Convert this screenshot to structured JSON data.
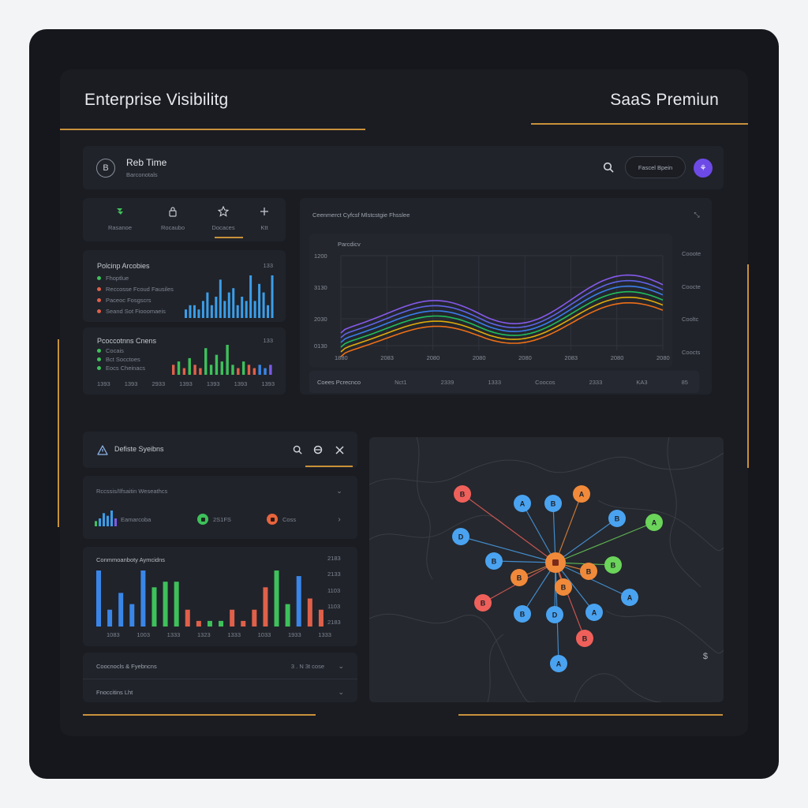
{
  "header": {
    "title": "Enterprise Visibilitg",
    "plan": "SaaS Premiun"
  },
  "topbar": {
    "logo_glyph": "B",
    "app_name": "Reb Time",
    "app_subtitle": "Barconotals",
    "search_icon": "search-icon",
    "pill_label": "Fascel Bpein",
    "avatar_glyph": "⚘"
  },
  "nav": {
    "tabs": [
      {
        "icon": "layers-icon",
        "label": "Rasanoe",
        "active": false
      },
      {
        "icon": "lock-icon",
        "label": "Rocaubo",
        "active": false
      },
      {
        "icon": "star-icon",
        "label": "Docaces",
        "active": true
      },
      {
        "icon": "plus-icon",
        "label": "Ktt",
        "active": false
      }
    ]
  },
  "activity_card": {
    "title": "Polcinp Arcobies",
    "corner": "133",
    "legend": [
      {
        "label": "Fhoptlue",
        "color": "#3ec15b"
      },
      {
        "label": "Reccosse Fcoud Fausiles",
        "color": "#e0604a"
      },
      {
        "label": "Paceoc Fosgscrs",
        "color": "#e0604a"
      },
      {
        "label": "Seand Sot Fiooomaeis",
        "color": "#e0604a"
      }
    ],
    "bars": [
      2,
      3,
      3,
      2,
      4,
      6,
      3,
      5,
      9,
      4,
      6,
      7,
      3,
      5,
      4,
      10,
      4,
      8,
      6,
      3,
      10
    ]
  },
  "sessions_card": {
    "title": "Pcoccotnns Cnens",
    "corner": "133",
    "legend": [
      {
        "label": "Cocais",
        "color": "#3ec15b"
      },
      {
        "label": "Bct Socctoes",
        "color": "#3ec15b"
      },
      {
        "label": "Eocs Cheinacs",
        "color": "#3ec15b"
      }
    ],
    "x_labels": [
      "1393",
      "1393",
      "2933",
      "1393",
      "1393",
      "1393",
      "1393"
    ],
    "bars": [
      {
        "v": 3,
        "c": "#e0604a"
      },
      {
        "v": 4,
        "c": "#3ec15b"
      },
      {
        "v": 2,
        "c": "#e0604a"
      },
      {
        "v": 5,
        "c": "#3ec15b"
      },
      {
        "v": 3,
        "c": "#e0604a"
      },
      {
        "v": 2,
        "c": "#e0604a"
      },
      {
        "v": 8,
        "c": "#3ec15b"
      },
      {
        "v": 3,
        "c": "#3ec15b"
      },
      {
        "v": 6,
        "c": "#3ec15b"
      },
      {
        "v": 4,
        "c": "#3ec15b"
      },
      {
        "v": 9,
        "c": "#3ec15b"
      },
      {
        "v": 3,
        "c": "#3ec15b"
      },
      {
        "v": 2,
        "c": "#e0604a"
      },
      {
        "v": 4,
        "c": "#3ec15b"
      },
      {
        "v": 3,
        "c": "#e0604a"
      },
      {
        "v": 2,
        "c": "#e0604a"
      },
      {
        "v": 3,
        "c": "#3a86e8"
      },
      {
        "v": 2,
        "c": "#3a86e8"
      },
      {
        "v": 3,
        "c": "#7b5be6"
      }
    ]
  },
  "wave_chart": {
    "title": "Ceenmerct Cyfcsf Mlstcstgie Fhsslee",
    "subtitle": "Parcdicv",
    "y_labels": [
      "1200",
      "3130",
      "2030",
      "0130"
    ],
    "x_labels": [
      "1880",
      "2083",
      "2080",
      "2080",
      "2080",
      "2083",
      "2080",
      "2080"
    ],
    "right_labels": [
      "Cooote",
      "Coocte",
      "Cooltc",
      "Coocts"
    ],
    "footer": [
      "Coees Pcrecnco",
      "Nct1",
      "2339",
      "1333",
      "Coocos",
      "2333",
      "KA3",
      "85"
    ],
    "series_colors": [
      "#8b5cf6",
      "#6366f1",
      "#3b82f6",
      "#22c55e",
      "#eab308",
      "#f97316"
    ]
  },
  "systems_bar": {
    "icon": "warning-icon",
    "title": "Defiste Syeibns"
  },
  "status_card": {
    "title": "Rccssis/Ilfsaitin Weseathcs",
    "spark_label": "Eamarcoba",
    "ok_label": "2S1FS",
    "err_label": "Coss",
    "bars": [
      2,
      3,
      5,
      4,
      6,
      3
    ]
  },
  "bottom_chart": {
    "title": "Conmmoanboty Aymcidns",
    "y_labels": [
      "2183",
      "2133",
      "1103",
      "1103",
      "2183"
    ],
    "x_labels": [
      "1083",
      "1003",
      "1333",
      "1323",
      "1333",
      "1033",
      "1933",
      "1333"
    ],
    "bars": [
      {
        "v": 10,
        "c": "#3a86e8"
      },
      {
        "v": 3,
        "c": "#3a86e8"
      },
      {
        "v": 6,
        "c": "#3a86e8"
      },
      {
        "v": 4,
        "c": "#3a86e8"
      },
      {
        "v": 10,
        "c": "#3a86e8"
      },
      {
        "v": 7,
        "c": "#3ec15b"
      },
      {
        "v": 8,
        "c": "#3ec15b"
      },
      {
        "v": 8,
        "c": "#3ec15b"
      },
      {
        "v": 3,
        "c": "#e0604a"
      },
      {
        "v": 1,
        "c": "#e0604a"
      },
      {
        "v": 1,
        "c": "#3ec15b"
      },
      {
        "v": 1,
        "c": "#3ec15b"
      },
      {
        "v": 3,
        "c": "#e0604a"
      },
      {
        "v": 1,
        "c": "#e0604a"
      },
      {
        "v": 3,
        "c": "#e0604a"
      },
      {
        "v": 7,
        "c": "#e0604a"
      },
      {
        "v": 10,
        "c": "#3ec15b"
      },
      {
        "v": 4,
        "c": "#3ec15b"
      },
      {
        "v": 9,
        "c": "#3a86e8"
      },
      {
        "v": 5,
        "c": "#e0604a"
      },
      {
        "v": 3,
        "c": "#e0604a"
      }
    ]
  },
  "footer_rows": [
    {
      "label": "Coocnocls & Fyebncns",
      "meta": "3 . N 3t cose"
    },
    {
      "label": "Fnoccitins Lht",
      "meta": ""
    }
  ],
  "network_map": {
    "hub_color": "#f08a3a",
    "corner_glyph": "$",
    "nodes": [
      {
        "color": "#f0605a",
        "glyph": "B"
      },
      {
        "color": "#4aa3f0",
        "glyph": "A"
      },
      {
        "color": "#4aa3f0",
        "glyph": "B"
      },
      {
        "color": "#f08a3a",
        "glyph": "A"
      },
      {
        "color": "#4aa3f0",
        "glyph": "B"
      },
      {
        "color": "#6bd45a",
        "glyph": "A"
      },
      {
        "color": "#4aa3f0",
        "glyph": "D"
      },
      {
        "color": "#4aa3f0",
        "glyph": "B"
      },
      {
        "color": "#f08a3a",
        "glyph": "B"
      },
      {
        "color": "#f08a3a",
        "glyph": "B"
      },
      {
        "color": "#6bd45a",
        "glyph": "B"
      },
      {
        "color": "#f08a3a",
        "glyph": "B"
      },
      {
        "color": "#4aa3f0",
        "glyph": "A"
      },
      {
        "color": "#f0605a",
        "glyph": "B"
      },
      {
        "color": "#4aa3f0",
        "glyph": "B"
      },
      {
        "color": "#4aa3f0",
        "glyph": "D"
      },
      {
        "color": "#4aa3f0",
        "glyph": "A"
      },
      {
        "color": "#f0605a",
        "glyph": "B"
      },
      {
        "color": "#4aa3f0",
        "glyph": "A"
      }
    ]
  }
}
